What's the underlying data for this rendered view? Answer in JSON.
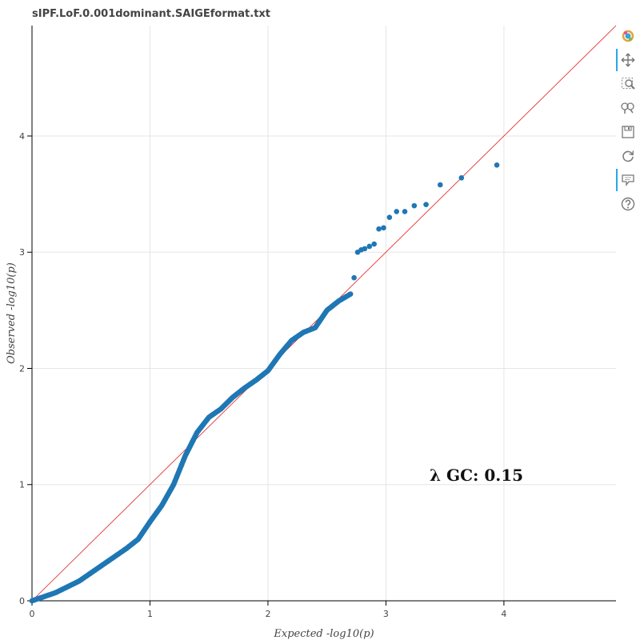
{
  "title": "sIPF.LoF.0.001dominant.SAIGEformat.txt",
  "annotation": "λ GC: 0.15",
  "toolbar": {
    "tools": [
      {
        "name": "bokeh-logo-icon",
        "active": false
      },
      {
        "name": "pan-icon",
        "active": true
      },
      {
        "name": "box-zoom-icon",
        "active": false
      },
      {
        "name": "wheel-zoom-icon",
        "active": false
      },
      {
        "name": "save-icon",
        "active": false
      },
      {
        "name": "reset-icon",
        "active": false
      },
      {
        "name": "hover-icon",
        "active": true
      },
      {
        "name": "help-icon",
        "active": false
      }
    ]
  },
  "chart_data": {
    "type": "scatter",
    "title": "sIPF.LoF.0.001dominant.SAIGEformat.txt",
    "xlabel": "Expected -log10(p)",
    "ylabel": "Observed -log10(p)",
    "xlim": [
      0,
      4.95
    ],
    "ylim": [
      0,
      4.95
    ],
    "xticks": [
      0,
      1,
      2,
      3,
      4
    ],
    "yticks": [
      0,
      1,
      2,
      3,
      4
    ],
    "grid": true,
    "point_color": "#1f77b4",
    "reference_line": {
      "from": [
        0,
        0
      ],
      "to": [
        4.95,
        4.95
      ],
      "color": "#e41a1c"
    },
    "lambda_gc": 0.15,
    "curve": {
      "note": "dense run of points following this path",
      "x": [
        0,
        0.2,
        0.4,
        0.6,
        0.8,
        0.9,
        1.0,
        1.1,
        1.2,
        1.3,
        1.4,
        1.5,
        1.6,
        1.7,
        1.8,
        1.9,
        2.0,
        2.1,
        2.2,
        2.3,
        2.4,
        2.5,
        2.6,
        2.7
      ],
      "y": [
        0,
        0.07,
        0.17,
        0.31,
        0.45,
        0.53,
        0.68,
        0.82,
        1.0,
        1.25,
        1.45,
        1.58,
        1.65,
        1.75,
        1.83,
        1.9,
        1.98,
        2.12,
        2.24,
        2.31,
        2.35,
        2.5,
        2.58,
        2.64
      ]
    },
    "points": {
      "x": [
        2.73,
        2.76,
        2.79,
        2.82,
        2.86,
        2.9,
        2.94,
        2.98,
        3.03,
        3.09,
        3.16,
        3.24,
        3.34,
        3.46,
        3.64,
        3.94
      ],
      "y": [
        2.78,
        3.0,
        3.02,
        3.03,
        3.05,
        3.07,
        3.2,
        3.21,
        3.3,
        3.35,
        3.35,
        3.4,
        3.41,
        3.58,
        3.64,
        3.75
      ]
    }
  }
}
